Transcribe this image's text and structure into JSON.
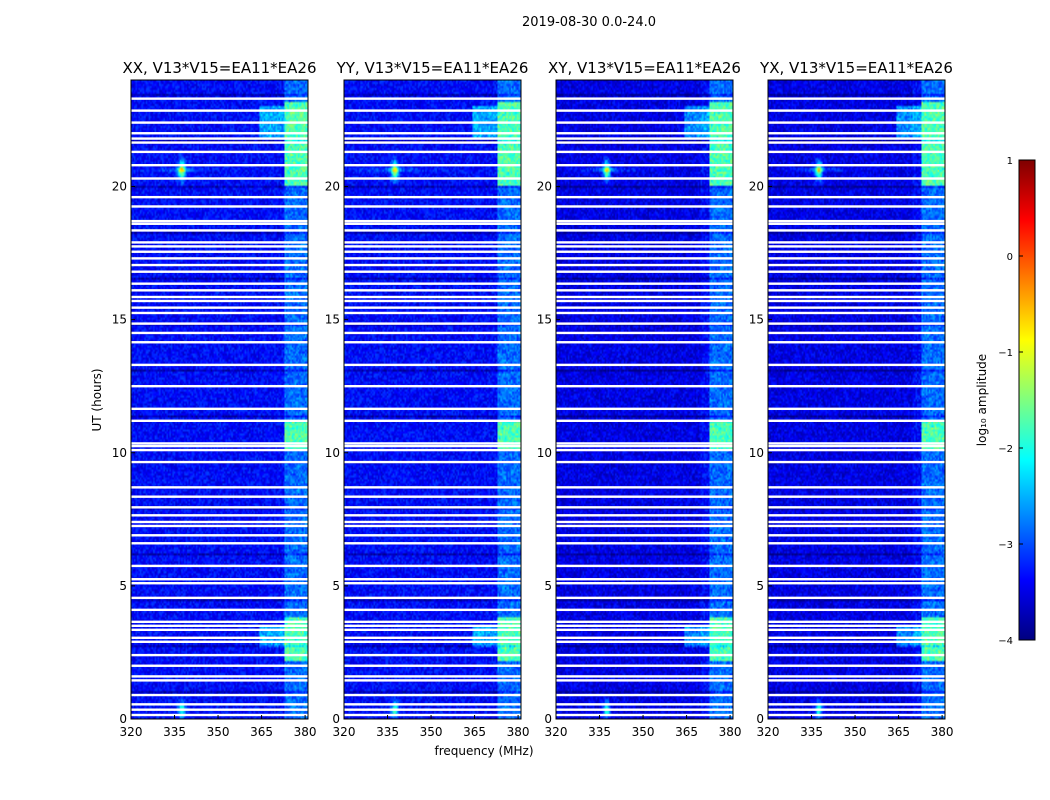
{
  "chart_data": {
    "type": "heatmap",
    "suptitle": "2019-08-30 0.0-24.0",
    "xlabel": "frequency (MHz)",
    "ylabel": "UT (hours)",
    "xlim": [
      320,
      381
    ],
    "ylim": [
      0,
      24
    ],
    "xticks": [
      320,
      335,
      350,
      365,
      380
    ],
    "yticks": [
      0,
      5,
      10,
      15,
      20
    ],
    "colorbar": {
      "label": "log₁₀ amplitude",
      "range": [
        -4,
        1
      ],
      "ticks": [
        1,
        0,
        -1,
        -2,
        -3,
        -4
      ],
      "tick_labels": [
        "1",
        "0",
        "−1",
        "−2",
        "−3",
        "−4"
      ],
      "colormap": [
        "#00007f",
        "#0000ff",
        "#007fff",
        "#00ffff",
        "#7fff7f",
        "#ffff00",
        "#ff7f00",
        "#ff0000",
        "#7f0000"
      ]
    },
    "panels": [
      {
        "title": "XX, V13*V15=EA11*EA26",
        "cross": false
      },
      {
        "title": "YY, V13*V15=EA11*EA26",
        "cross": false
      },
      {
        "title": "XY, V13*V15=EA11*EA26",
        "cross": true
      },
      {
        "title": "YX, V13*V15=EA11*EA26",
        "cross": true
      }
    ],
    "flagged_ut_hours": [
      0.15,
      0.35,
      0.55,
      0.9,
      1.45,
      1.6,
      2.0,
      2.4,
      2.9,
      3.05,
      3.35,
      3.5,
      3.65,
      4.1,
      4.55,
      5.1,
      5.25,
      5.75,
      6.6,
      6.9,
      7.25,
      7.4,
      7.65,
      7.95,
      8.35,
      8.7,
      9.65,
      10.1,
      10.25,
      10.35,
      11.2,
      11.65,
      12.5,
      13.3,
      14.15,
      14.5,
      14.85,
      15.25,
      15.45,
      15.7,
      15.85,
      16.1,
      16.35,
      16.8,
      17.05,
      17.3,
      17.55,
      17.75,
      17.9,
      18.35,
      18.6,
      18.7,
      19.25,
      19.6,
      20.3,
      20.8,
      21.3,
      21.65,
      21.8,
      22.0,
      22.4,
      22.85,
      23.3
    ]
  }
}
